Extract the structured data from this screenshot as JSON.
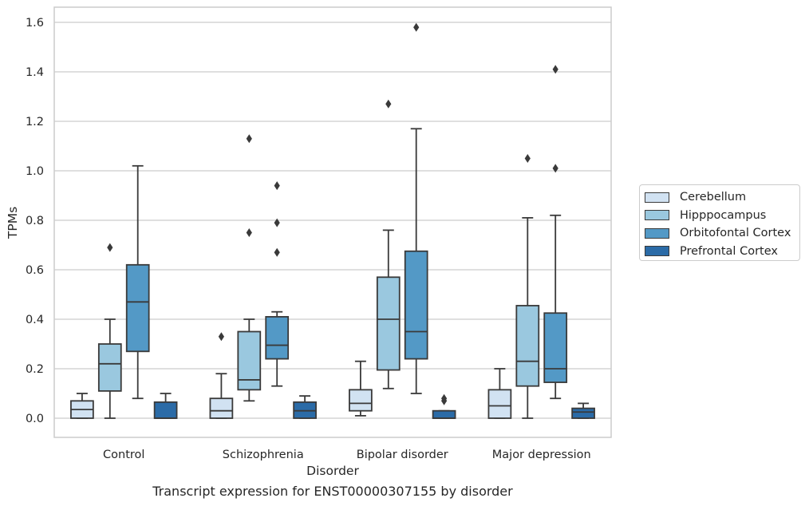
{
  "caption": "Transcript expression for ENST00000307155 by disorder",
  "chart_data": {
    "type": "box",
    "xlabel": "Disorder",
    "ylabel": "TPMs",
    "ylim": [
      -0.075,
      1.66
    ],
    "yticks": [
      0.0,
      0.2,
      0.4,
      0.6,
      0.8,
      1.0,
      1.2,
      1.4,
      1.6
    ],
    "ytick_labels": [
      "0.0",
      "0.2",
      "0.4",
      "0.6",
      "0.8",
      "1.0",
      "1.2",
      "1.4",
      "1.6"
    ],
    "grid": "horizontal",
    "legend_position": "right",
    "categories": [
      "Control",
      "Schizophrenia",
      "Bipolar disorder",
      "Major depression"
    ],
    "series": [
      {
        "name": "Cerebellum",
        "color": "#d1e2f2",
        "boxes": [
          {
            "q1": 0.0,
            "median": 0.035,
            "q3": 0.07,
            "whisker_low": 0.0,
            "whisker_high": 0.1,
            "outliers": []
          },
          {
            "q1": 0.0,
            "median": 0.03,
            "q3": 0.08,
            "whisker_low": 0.0,
            "whisker_high": 0.18,
            "outliers": [
              0.33
            ]
          },
          {
            "q1": 0.03,
            "median": 0.06,
            "q3": 0.115,
            "whisker_low": 0.01,
            "whisker_high": 0.23,
            "outliers": []
          },
          {
            "q1": 0.0,
            "median": 0.05,
            "q3": 0.115,
            "whisker_low": 0.0,
            "whisker_high": 0.2,
            "outliers": []
          }
        ]
      },
      {
        "name": "Hipppocampus",
        "color": "#9ac8df",
        "boxes": [
          {
            "q1": 0.11,
            "median": 0.22,
            "q3": 0.3,
            "whisker_low": 0.0,
            "whisker_high": 0.4,
            "outliers": [
              0.69
            ]
          },
          {
            "q1": 0.115,
            "median": 0.155,
            "q3": 0.35,
            "whisker_low": 0.07,
            "whisker_high": 0.4,
            "outliers": [
              0.75,
              1.13
            ]
          },
          {
            "q1": 0.195,
            "median": 0.4,
            "q3": 0.57,
            "whisker_low": 0.12,
            "whisker_high": 0.76,
            "outliers": [
              1.27
            ]
          },
          {
            "q1": 0.13,
            "median": 0.23,
            "q3": 0.455,
            "whisker_low": 0.0,
            "whisker_high": 0.81,
            "outliers": [
              1.05
            ]
          }
        ]
      },
      {
        "name": "Orbitofontal Cortex",
        "color": "#5399c6",
        "boxes": [
          {
            "q1": 0.27,
            "median": 0.47,
            "q3": 0.62,
            "whisker_low": 0.08,
            "whisker_high": 1.02,
            "outliers": []
          },
          {
            "q1": 0.24,
            "median": 0.295,
            "q3": 0.41,
            "whisker_low": 0.13,
            "whisker_high": 0.43,
            "outliers": [
              0.67,
              0.79,
              0.94
            ]
          },
          {
            "q1": 0.24,
            "median": 0.35,
            "q3": 0.675,
            "whisker_low": 0.1,
            "whisker_high": 1.17,
            "outliers": [
              1.58
            ]
          },
          {
            "q1": 0.145,
            "median": 0.2,
            "q3": 0.425,
            "whisker_low": 0.08,
            "whisker_high": 0.82,
            "outliers": [
              1.01,
              1.41
            ]
          }
        ]
      },
      {
        "name": "Prefrontal Cortex",
        "color": "#2b6ba7",
        "boxes": [
          {
            "q1": 0.0,
            "median": 0.0,
            "q3": 0.065,
            "whisker_low": 0.0,
            "whisker_high": 0.1,
            "outliers": []
          },
          {
            "q1": 0.0,
            "median": 0.03,
            "q3": 0.065,
            "whisker_low": 0.0,
            "whisker_high": 0.09,
            "outliers": []
          },
          {
            "q1": 0.0,
            "median": 0.0,
            "q3": 0.03,
            "whisker_low": 0.0,
            "whisker_high": 0.03,
            "outliers": [
              0.07,
              0.08
            ]
          },
          {
            "q1": 0.0,
            "median": 0.025,
            "q3": 0.04,
            "whisker_low": 0.0,
            "whisker_high": 0.06,
            "outliers": []
          }
        ]
      }
    ]
  }
}
